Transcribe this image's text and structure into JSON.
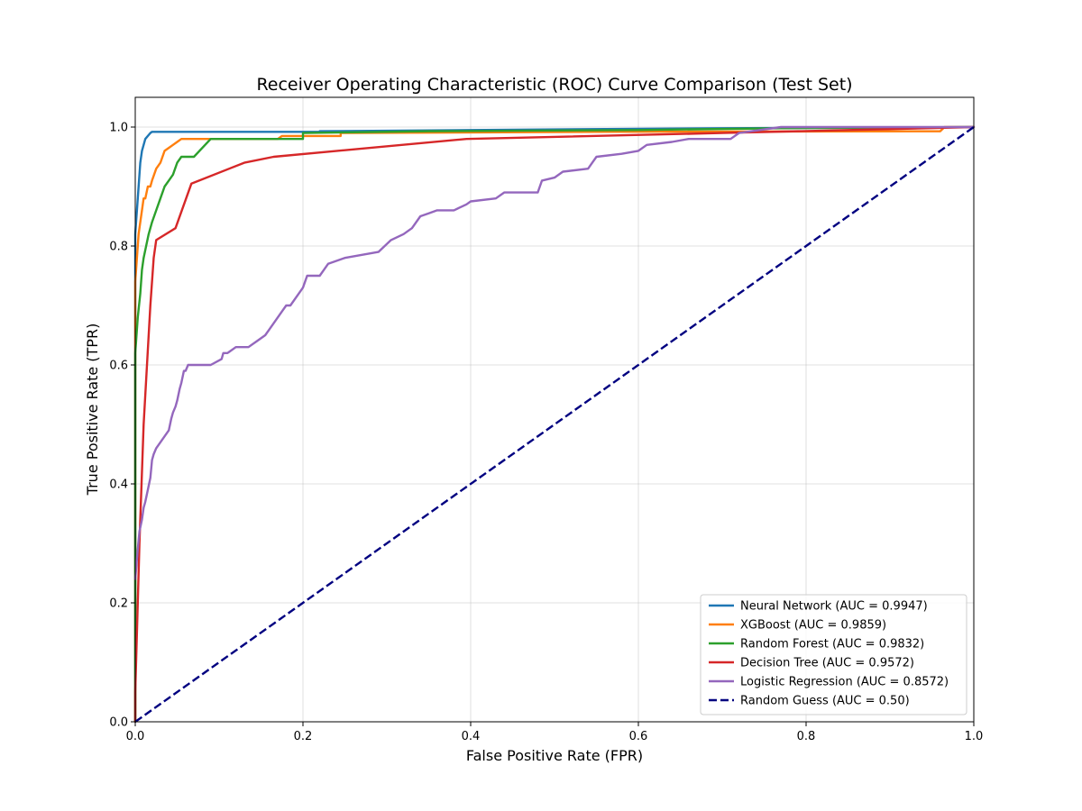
{
  "chart_data": {
    "type": "line",
    "title": "Receiver Operating Characteristic (ROC) Curve Comparison (Test Set)",
    "xlabel": "False Positive Rate (FPR)",
    "ylabel": "True Positive Rate (TPR)",
    "xlim": [
      0.0,
      1.0
    ],
    "ylim": [
      0.0,
      1.05
    ],
    "xticks": [
      "0.0",
      "0.2",
      "0.4",
      "0.6",
      "0.8",
      "1.0"
    ],
    "yticks": [
      "0.0",
      "0.2",
      "0.4",
      "0.6",
      "0.8",
      "1.0"
    ],
    "grid": true,
    "legend_position": "lower-right",
    "series": [
      {
        "name": "Neural Network (AUC = 0.9947)",
        "color": "#1f77b4",
        "dash": "solid",
        "x": [
          0.0,
          0.0,
          0.001,
          0.002,
          0.003,
          0.004,
          0.005,
          0.006,
          0.007,
          0.008,
          0.01,
          0.012,
          0.015,
          0.018,
          0.02,
          0.1,
          0.22,
          0.22,
          0.4,
          0.7,
          1.0
        ],
        "y": [
          0.0,
          0.82,
          0.84,
          0.86,
          0.88,
          0.9,
          0.92,
          0.94,
          0.95,
          0.96,
          0.97,
          0.98,
          0.985,
          0.99,
          0.992,
          0.992,
          0.992,
          0.993,
          0.995,
          0.998,
          1.0
        ]
      },
      {
        "name": "XGBoost (AUC = 0.9859)",
        "color": "#ff7f0e",
        "dash": "solid",
        "x": [
          0.0,
          0.0,
          0.002,
          0.004,
          0.006,
          0.008,
          0.01,
          0.012,
          0.015,
          0.018,
          0.02,
          0.025,
          0.03,
          0.035,
          0.04,
          0.045,
          0.05,
          0.055,
          0.09,
          0.17,
          0.175,
          0.245,
          0.245,
          0.55,
          0.96,
          0.965,
          1.0
        ],
        "y": [
          0.0,
          0.74,
          0.78,
          0.82,
          0.84,
          0.86,
          0.88,
          0.88,
          0.9,
          0.9,
          0.91,
          0.93,
          0.94,
          0.96,
          0.965,
          0.97,
          0.975,
          0.98,
          0.98,
          0.98,
          0.985,
          0.985,
          0.99,
          0.992,
          0.993,
          1.0,
          1.0
        ]
      },
      {
        "name": "Random Forest (AUC = 0.9832)",
        "color": "#2ca02c",
        "dash": "solid",
        "x": [
          0.0,
          0.0,
          0.003,
          0.006,
          0.008,
          0.01,
          0.013,
          0.016,
          0.02,
          0.025,
          0.03,
          0.035,
          0.04,
          0.045,
          0.05,
          0.055,
          0.07,
          0.08,
          0.09,
          0.2,
          0.2,
          0.35,
          0.6,
          0.77,
          1.0
        ],
        "y": [
          0.0,
          0.62,
          0.68,
          0.72,
          0.76,
          0.78,
          0.8,
          0.82,
          0.84,
          0.86,
          0.88,
          0.9,
          0.91,
          0.92,
          0.94,
          0.95,
          0.95,
          0.965,
          0.98,
          0.98,
          0.99,
          0.993,
          0.995,
          0.998,
          1.0
        ]
      },
      {
        "name": "Decision Tree (AUC = 0.9572)",
        "color": "#d62728",
        "dash": "solid",
        "x": [
          0.0,
          0.0,
          0.005,
          0.01,
          0.018,
          0.022,
          0.025,
          0.048,
          0.067,
          0.13,
          0.165,
          0.395,
          0.7,
          1.0
        ],
        "y": [
          0.0,
          0.05,
          0.3,
          0.5,
          0.7,
          0.78,
          0.81,
          0.83,
          0.905,
          0.94,
          0.95,
          0.98,
          0.99,
          1.0
        ]
      },
      {
        "name": "Logistic Regression (AUC = 0.8572)",
        "color": "#9467bd",
        "dash": "solid",
        "x": [
          0.0,
          0.003,
          0.005,
          0.008,
          0.01,
          0.012,
          0.015,
          0.018,
          0.02,
          0.022,
          0.025,
          0.03,
          0.035,
          0.04,
          0.043,
          0.045,
          0.048,
          0.05,
          0.053,
          0.055,
          0.058,
          0.06,
          0.063,
          0.065,
          0.07,
          0.08,
          0.09,
          0.103,
          0.105,
          0.11,
          0.12,
          0.13,
          0.135,
          0.145,
          0.155,
          0.16,
          0.165,
          0.175,
          0.18,
          0.185,
          0.195,
          0.2,
          0.205,
          0.22,
          0.225,
          0.23,
          0.25,
          0.29,
          0.305,
          0.32,
          0.33,
          0.34,
          0.35,
          0.36,
          0.38,
          0.395,
          0.4,
          0.43,
          0.44,
          0.48,
          0.485,
          0.5,
          0.51,
          0.54,
          0.545,
          0.55,
          0.58,
          0.6,
          0.61,
          0.64,
          0.66,
          0.71,
          0.72,
          0.77,
          1.0
        ],
        "y": [
          0.24,
          0.29,
          0.32,
          0.34,
          0.36,
          0.37,
          0.39,
          0.41,
          0.44,
          0.45,
          0.46,
          0.47,
          0.48,
          0.49,
          0.51,
          0.52,
          0.53,
          0.54,
          0.56,
          0.57,
          0.59,
          0.59,
          0.6,
          0.6,
          0.6,
          0.6,
          0.6,
          0.61,
          0.62,
          0.62,
          0.63,
          0.63,
          0.63,
          0.64,
          0.65,
          0.66,
          0.67,
          0.69,
          0.7,
          0.7,
          0.72,
          0.73,
          0.75,
          0.75,
          0.76,
          0.77,
          0.78,
          0.79,
          0.81,
          0.82,
          0.83,
          0.85,
          0.855,
          0.86,
          0.86,
          0.87,
          0.875,
          0.88,
          0.89,
          0.89,
          0.91,
          0.915,
          0.925,
          0.93,
          0.94,
          0.95,
          0.955,
          0.96,
          0.97,
          0.975,
          0.98,
          0.98,
          0.99,
          1.0,
          1.0
        ]
      },
      {
        "name": "Random Guess (AUC = 0.50)",
        "color": "#000080",
        "dash": "dashed",
        "x": [
          0.0,
          1.0
        ],
        "y": [
          0.0,
          1.0
        ]
      }
    ]
  }
}
